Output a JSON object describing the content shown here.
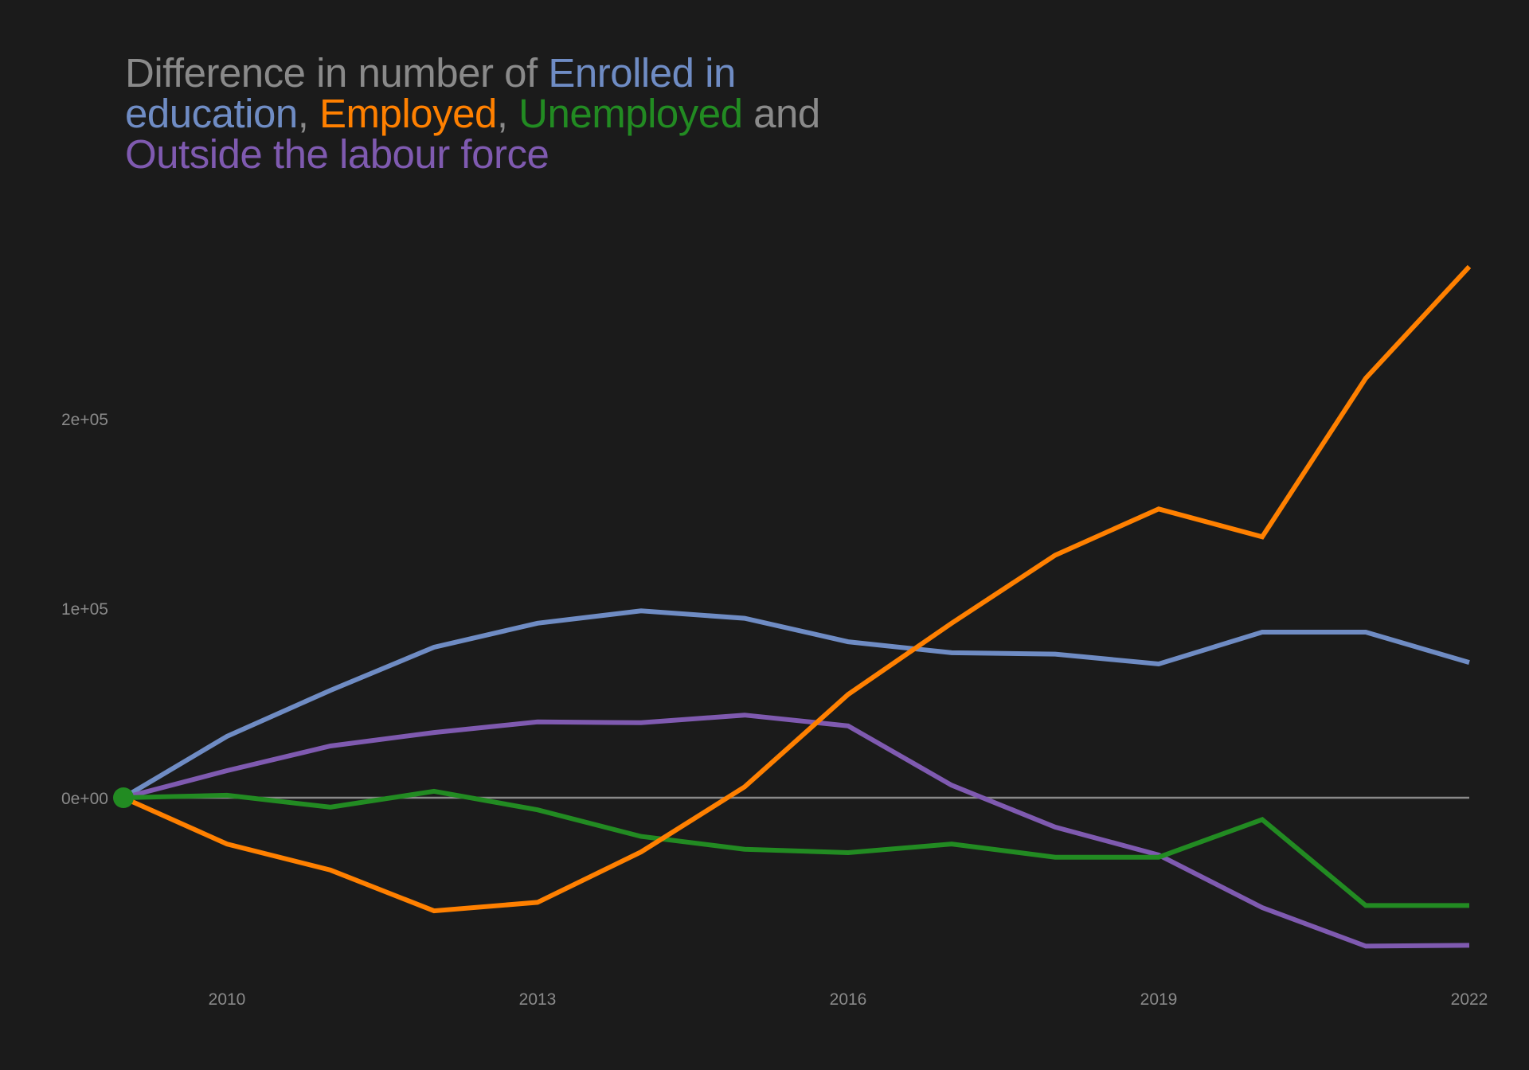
{
  "chart_data": {
    "type": "line",
    "title_segments": [
      {
        "text": "Difference in number of ",
        "color": "#8a8a8a"
      },
      {
        "text": "Enrolled in education",
        "color": "#6f8cc4"
      },
      {
        "text": ", ",
        "color": "#8a8a8a"
      },
      {
        "text": "Employed",
        "color": "#ff8000"
      },
      {
        "text": ", ",
        "color": "#8a8a8a"
      },
      {
        "text": "Unemployed",
        "color": "#228b22"
      },
      {
        "text": " and ",
        "color": "#8a8a8a"
      },
      {
        "text": "Outside the labour force",
        "color": "#7f5ab0"
      }
    ],
    "title": "Difference in number of Enrolled in education, Employed, Unemployed and Outside the labour force",
    "xlabel": "",
    "ylabel": "",
    "x": [
      2009,
      2010,
      2011,
      2012,
      2013,
      2014,
      2015,
      2016,
      2017,
      2018,
      2019,
      2020,
      2021,
      2022
    ],
    "xlim": [
      2009,
      2022
    ],
    "ylim": [
      -90000,
      290000
    ],
    "x_ticks": [
      {
        "value": 2010,
        "label": "2010"
      },
      {
        "value": 2013,
        "label": "2013"
      },
      {
        "value": 2016,
        "label": "2016"
      },
      {
        "value": 2019,
        "label": "2019"
      },
      {
        "value": 2022,
        "label": "2022"
      }
    ],
    "y_ticks": [
      {
        "value": 0,
        "label": "0e+00"
      },
      {
        "value": 100000,
        "label": "1e+05"
      },
      {
        "value": 200000,
        "label": "2e+05"
      }
    ],
    "grid": false,
    "reference_line": 0,
    "start_marker": {
      "x": 2009,
      "y": 0,
      "color": "#228b22"
    },
    "series": [
      {
        "name": "Enrolled in education",
        "color": "#6f8cc4",
        "values": [
          0,
          32400,
          56700,
          79400,
          92100,
          98600,
          94700,
          82300,
          76500,
          75800,
          70600,
          87400,
          87400,
          71400
        ]
      },
      {
        "name": "Outside the labour force",
        "color": "#7f5ab0",
        "values": [
          0,
          14300,
          27300,
          34400,
          40000,
          39600,
          43600,
          37900,
          6600,
          -15500,
          -30200,
          -58000,
          -78300,
          -77900
        ]
      },
      {
        "name": "Unemployed",
        "color": "#228b22",
        "values": [
          0,
          1300,
          -5000,
          3400,
          -6400,
          -20400,
          -27200,
          -29000,
          -24400,
          -31400,
          -31400,
          -11500,
          -56900,
          -56900
        ]
      },
      {
        "name": "Employed",
        "color": "#ff8000",
        "values": [
          0,
          -24400,
          -38200,
          -59700,
          -55200,
          -28600,
          5700,
          54500,
          92100,
          128000,
          152400,
          137700,
          221400,
          280300
        ]
      }
    ],
    "legend": "title"
  }
}
